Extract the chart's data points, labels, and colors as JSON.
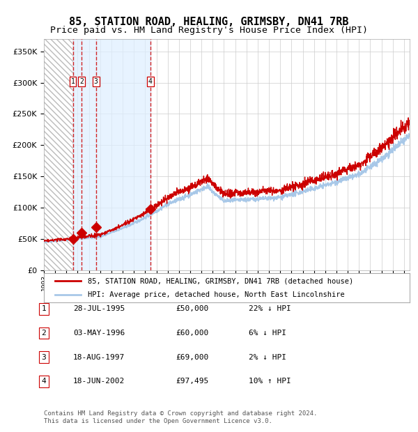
{
  "title": "85, STATION ROAD, HEALING, GRIMSBY, DN41 7RB",
  "subtitle": "Price paid vs. HM Land Registry's House Price Index (HPI)",
  "legend_line1": "85, STATION ROAD, HEALING, GRIMSBY, DN41 7RB (detached house)",
  "legend_line2": "HPI: Average price, detached house, North East Lincolnshire",
  "footer": "Contains HM Land Registry data © Crown copyright and database right 2024.\nThis data is licensed under the Open Government Licence v3.0.",
  "transactions": [
    {
      "num": 1,
      "date": "28-JUL-1995",
      "price": 50000,
      "hpi_rel": "22% ↓ HPI",
      "x": 1995.57
    },
    {
      "num": 2,
      "date": "03-MAY-1996",
      "price": 60000,
      "hpi_rel": "6% ↓ HPI",
      "x": 1996.33
    },
    {
      "num": 3,
      "date": "18-AUG-1997",
      "price": 69000,
      "hpi_rel": "2% ↓ HPI",
      "x": 1997.63
    },
    {
      "num": 4,
      "date": "18-JUN-2002",
      "price": 97495,
      "hpi_rel": "10% ↑ HPI",
      "x": 2002.46
    }
  ],
  "hpi_color": "#a8c8e8",
  "price_color": "#cc0000",
  "marker_color": "#cc0000",
  "shade_color": "#ddeeff",
  "dashed_line_color": "#cc0000",
  "ylim": [
    0,
    370000
  ],
  "xlim": [
    1993,
    2025.5
  ],
  "background_color": "#ffffff",
  "grid_color": "#cccccc",
  "title_fontsize": 11,
  "subtitle_fontsize": 9.5,
  "start_year": 1993,
  "end_year": 2025.5
}
